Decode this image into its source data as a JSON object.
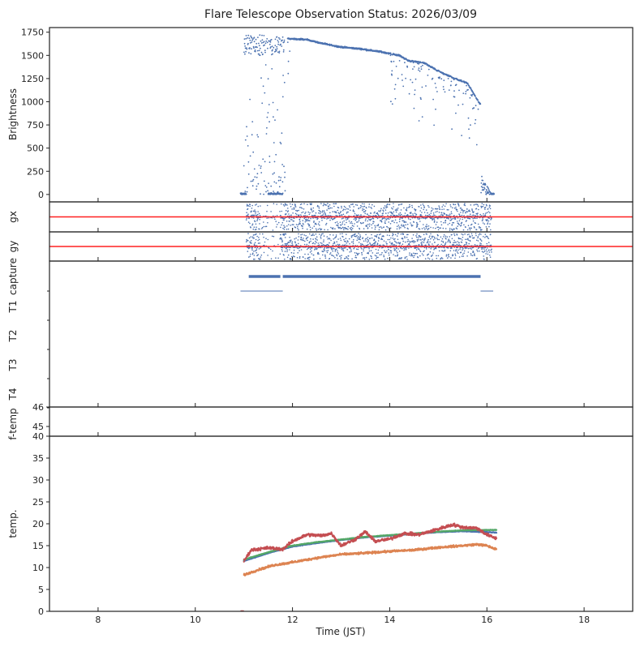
{
  "chart_data": {
    "type": "scatter",
    "title": "Flare Telescope Observation Status: 2026/03/09",
    "xlabel": "Time (JST)",
    "xlim": [
      7,
      19
    ],
    "xticks": [
      "8",
      "10",
      "12",
      "14",
      "16",
      "18"
    ],
    "xtick_values": [
      8,
      10,
      12,
      14,
      16,
      18
    ],
    "colors": {
      "blue": "#4c72b0",
      "orange": "#dd8452",
      "green": "#55a868",
      "red": "#c44e52",
      "refline": "#ff2020"
    },
    "panels": [
      {
        "name": "brightness",
        "ylabel": "Brightness",
        "ylim": [
          -80,
          1800
        ],
        "yticks": [
          "0",
          "250",
          "500",
          "750",
          "1000",
          "1250",
          "1500",
          "1750"
        ],
        "ytick_values": [
          0,
          250,
          500,
          750,
          1000,
          1250,
          1500,
          1750
        ],
        "trend": [
          [
            11.9,
            1680
          ],
          [
            12.3,
            1670
          ],
          [
            12.6,
            1630
          ],
          [
            13.0,
            1590
          ],
          [
            13.4,
            1570
          ],
          [
            13.8,
            1540
          ],
          [
            14.2,
            1500
          ],
          [
            14.4,
            1440
          ],
          [
            14.7,
            1420
          ],
          [
            15.0,
            1330
          ],
          [
            15.3,
            1260
          ],
          [
            15.6,
            1200
          ],
          [
            15.85,
            980
          ]
        ],
        "scatter_range": [
          11.0,
          11.85
        ],
        "zero_segments": [
          [
            10.93,
            11.05
          ],
          [
            11.5,
            11.8
          ],
          [
            16.1,
            16.15
          ]
        ]
      },
      {
        "name": "gx",
        "ylabel": "gx",
        "reference_line": true,
        "range": [
          11.05,
          16.1
        ]
      },
      {
        "name": "gy",
        "ylabel": "gy",
        "reference_line": true,
        "range": [
          11.05,
          16.1
        ]
      },
      {
        "name": "status",
        "type": "categorical",
        "categories": [
          "capture",
          "T1",
          "T2",
          "T3",
          "T4"
        ],
        "segments": [
          {
            "row": 0,
            "from": 11.1,
            "to": 11.75
          },
          {
            "row": 0,
            "from": 11.8,
            "to": 15.87
          },
          {
            "row": 0.5,
            "from": 10.93,
            "to": 11.8
          },
          {
            "row": 0.5,
            "from": 15.87,
            "to": 16.13
          }
        ]
      },
      {
        "name": "f-temp",
        "ylabel": "f-temp",
        "ylim": [
          44.5,
          46
        ],
        "yticks": [
          "45",
          "46"
        ],
        "ytick_values": [
          45,
          46
        ]
      },
      {
        "name": "temp",
        "ylabel": "temp.",
        "ylim": [
          0,
          40
        ],
        "yticks": [
          "0",
          "5",
          "10",
          "15",
          "20",
          "25",
          "30",
          "35",
          "40"
        ],
        "ytick_values": [
          0,
          5,
          10,
          15,
          20,
          25,
          30,
          35,
          40
        ],
        "series": [
          {
            "name": "blue",
            "color": "#4c72b0",
            "points": [
              [
                11.0,
                11.5
              ],
              [
                11.5,
                13.3
              ],
              [
                12,
                14.8
              ],
              [
                12.5,
                15.6
              ],
              [
                13,
                16.3
              ],
              [
                13.5,
                16.9
              ],
              [
                14,
                17.3
              ],
              [
                14.5,
                17.7
              ],
              [
                15,
                18.1
              ],
              [
                15.5,
                18.3
              ],
              [
                16.2,
                18.0
              ]
            ]
          },
          {
            "name": "green",
            "color": "#55a868",
            "points": [
              [
                11.0,
                11.8
              ],
              [
                11.5,
                13.5
              ],
              [
                12,
                15.0
              ],
              [
                12.5,
                15.8
              ],
              [
                13,
                16.4
              ],
              [
                13.5,
                17.0
              ],
              [
                14,
                17.4
              ],
              [
                14.5,
                17.8
              ],
              [
                15,
                18.2
              ],
              [
                15.5,
                18.5
              ],
              [
                16.2,
                18.6
              ]
            ]
          },
          {
            "name": "orange",
            "color": "#dd8452",
            "points": [
              [
                11.0,
                8.3
              ],
              [
                11.3,
                9.5
              ],
              [
                11.6,
                10.5
              ],
              [
                12,
                11.2
              ],
              [
                12.5,
                12.2
              ],
              [
                13,
                13.0
              ],
              [
                13.5,
                13.3
              ],
              [
                14,
                13.7
              ],
              [
                14.5,
                14.0
              ],
              [
                15,
                14.6
              ],
              [
                15.5,
                15.0
              ],
              [
                15.8,
                15.3
              ],
              [
                16.0,
                15.0
              ],
              [
                16.2,
                14.1
              ]
            ]
          },
          {
            "name": "red",
            "color": "#c44e52",
            "points": [
              [
                11.0,
                11.5
              ],
              [
                11.15,
                14.0
              ],
              [
                11.5,
                14.5
              ],
              [
                11.8,
                14.2
              ],
              [
                12.0,
                16.0
              ],
              [
                12.3,
                17.5
              ],
              [
                12.6,
                17.3
              ],
              [
                12.8,
                17.8
              ],
              [
                13.0,
                15.0
              ],
              [
                13.3,
                16.5
              ],
              [
                13.5,
                18.2
              ],
              [
                13.7,
                16.0
              ],
              [
                14.0,
                16.5
              ],
              [
                14.3,
                17.8
              ],
              [
                14.6,
                17.5
              ],
              [
                15.0,
                18.8
              ],
              [
                15.3,
                19.8
              ],
              [
                15.5,
                19.2
              ],
              [
                15.8,
                19.0
              ],
              [
                16.0,
                17.5
              ],
              [
                16.2,
                16.6
              ]
            ]
          }
        ]
      }
    ]
  }
}
